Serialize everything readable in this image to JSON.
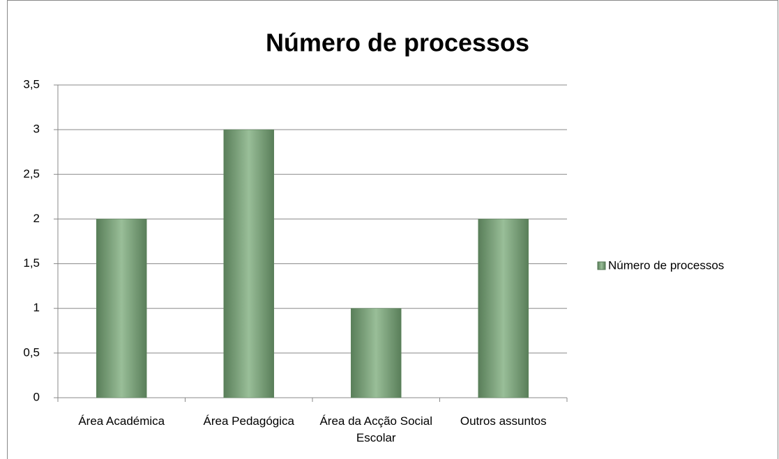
{
  "chart_data": {
    "type": "bar",
    "title": "Número de processos",
    "categories": [
      "Área Académica",
      "Área Pedagógica",
      "Área da Acção Social Escolar",
      "Outros assuntos"
    ],
    "series": [
      {
        "name": "Número de processos",
        "color": "#77a876",
        "values": [
          2,
          3,
          1,
          2
        ]
      }
    ],
    "ylim": [
      0,
      3.5
    ],
    "yticks": [
      0,
      {
        "value": 0.5,
        "label": "0,5"
      },
      1,
      {
        "value": 1.5,
        "label": "1,5"
      },
      2,
      {
        "value": 2.5,
        "label": "2,5"
      },
      3,
      {
        "value": 3.5,
        "label": "3,5"
      }
    ],
    "grid": true,
    "legend": "right"
  }
}
